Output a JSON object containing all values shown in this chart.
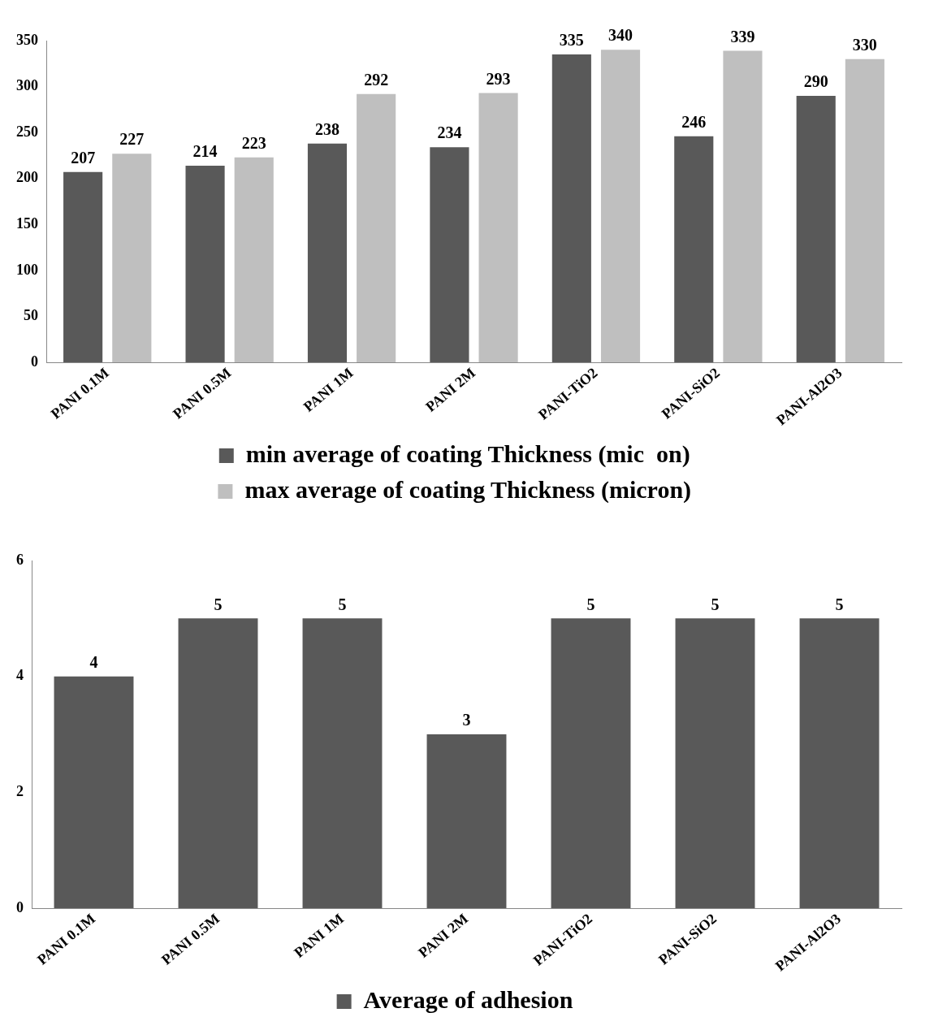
{
  "chart_data": [
    {
      "type": "bar",
      "categories": [
        "PANI 0.1M",
        "PANI 0.5M",
        "PANI 1M",
        "PANI 2M",
        "PANI-TiO2",
        "PANI-SiO2",
        "PANI-Al2O3"
      ],
      "series": [
        {
          "name": "min average of coating Thickness (mic  on)",
          "color": "#595959",
          "values": [
            207,
            214,
            238,
            234,
            335,
            246,
            290
          ]
        },
        {
          "name": "max average of coating Thickness (micron)",
          "color": "#bfbfbf",
          "values": [
            227,
            223,
            292,
            293,
            340,
            339,
            330
          ]
        }
      ],
      "ylim": [
        0,
        350
      ],
      "yticks": [
        0,
        50,
        100,
        150,
        200,
        250,
        300,
        350
      ],
      "grid": false,
      "legend": "bottom",
      "data_labels": true
    },
    {
      "type": "bar",
      "categories": [
        "PANI 0.1M",
        "PANI 0.5M",
        "PANI 1M",
        "PANI 2M",
        "PANI-TiO2",
        "PANI-SiO2",
        "PANI-Al2O3"
      ],
      "series": [
        {
          "name": "Average of adhesion",
          "color": "#595959",
          "values": [
            4,
            5,
            5,
            3,
            5,
            5,
            5
          ]
        }
      ],
      "ylim": [
        0,
        6
      ],
      "yticks": [
        0,
        2,
        4,
        6
      ],
      "grid": false,
      "legend": "bottom",
      "data_labels": true
    }
  ]
}
